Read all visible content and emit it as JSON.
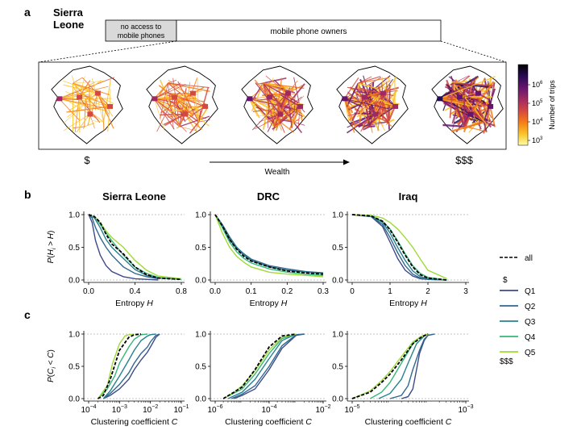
{
  "panel_a": {
    "letter": "a",
    "country_line1": "Sierra",
    "country_line2": "Leone",
    "no_access_line1": "no access to",
    "no_access_line2": "mobile phones",
    "owners_label": "mobile phone owners",
    "low_wealth": "$",
    "high_wealth": "$$$",
    "wealth_label": "Wealth",
    "colorbar_label": "Number of trips",
    "colorbar_ticks": [
      {
        "base": "10",
        "exp": "3"
      },
      {
        "base": "10",
        "exp": "4"
      },
      {
        "base": "10",
        "exp": "5"
      },
      {
        "base": "10",
        "exp": "6"
      }
    ],
    "colormap": [
      "#fcffa4",
      "#fac228",
      "#f57d15",
      "#d44842",
      "#9f2a63",
      "#65156e",
      "#280b53",
      "#000004"
    ]
  },
  "panel_b_letter": "b",
  "panel_c_letter": "c",
  "legend": {
    "all_label": "all",
    "low": "$",
    "high": "$$$",
    "quintiles": [
      {
        "label": "Q1",
        "color": "#3e4a89"
      },
      {
        "label": "Q2",
        "color": "#31688e"
      },
      {
        "label": "Q3",
        "color": "#26838f"
      },
      {
        "label": "Q4",
        "color": "#35b779"
      },
      {
        "label": "Q5",
        "color": "#a0da39"
      }
    ]
  },
  "chart_data": [
    {
      "type": "line",
      "id": "b-sl",
      "title": "Sierra Leone",
      "xlabel": "Entropy H",
      "ylabel": "P(H_i > H)",
      "xlim": [
        0,
        0.8
      ],
      "ylim": [
        0,
        1
      ],
      "xticks": [
        "0.0",
        "0.4",
        "0.8"
      ],
      "yticks": [
        "0.0",
        "0.5",
        "1.0"
      ],
      "series": [
        {
          "name": "Q1",
          "x": [
            0,
            0.03,
            0.06,
            0.1,
            0.15,
            0.2,
            0.3,
            0.4,
            0.5,
            0.6
          ],
          "y": [
            1,
            0.88,
            0.6,
            0.38,
            0.22,
            0.13,
            0.05,
            0.02,
            0.01,
            0
          ]
        },
        {
          "name": "Q2",
          "x": [
            0,
            0.03,
            0.06,
            0.1,
            0.15,
            0.2,
            0.3,
            0.4,
            0.5,
            0.6
          ],
          "y": [
            1,
            0.95,
            0.8,
            0.65,
            0.5,
            0.38,
            0.2,
            0.1,
            0.05,
            0.02
          ]
        },
        {
          "name": "Q3",
          "x": [
            0,
            0.05,
            0.1,
            0.15,
            0.2,
            0.3,
            0.4,
            0.5,
            0.6,
            0.8
          ],
          "y": [
            1,
            0.95,
            0.8,
            0.62,
            0.5,
            0.33,
            0.16,
            0.07,
            0.03,
            0.01
          ]
        },
        {
          "name": "Q4",
          "x": [
            0,
            0.05,
            0.1,
            0.15,
            0.2,
            0.3,
            0.4,
            0.5,
            0.6,
            0.8
          ],
          "y": [
            1,
            0.97,
            0.85,
            0.72,
            0.6,
            0.38,
            0.2,
            0.1,
            0.04,
            0.01
          ]
        },
        {
          "name": "Q5",
          "x": [
            0,
            0.05,
            0.1,
            0.15,
            0.2,
            0.3,
            0.4,
            0.5,
            0.6,
            0.8
          ],
          "y": [
            1,
            0.97,
            0.88,
            0.75,
            0.65,
            0.5,
            0.3,
            0.15,
            0.06,
            0.02
          ]
        },
        {
          "name": "all",
          "x": [
            0,
            0.05,
            0.1,
            0.15,
            0.2,
            0.3,
            0.4,
            0.5,
            0.6,
            0.8
          ],
          "y": [
            1,
            0.97,
            0.88,
            0.7,
            0.55,
            0.4,
            0.2,
            0.08,
            0.03,
            0.01
          ]
        }
      ]
    },
    {
      "type": "line",
      "id": "b-drc",
      "title": "DRC",
      "xlabel": "Entropy H",
      "ylabel": "",
      "xlim": [
        0,
        0.3
      ],
      "ylim": [
        0,
        1
      ],
      "xticks": [
        "0.0",
        "0.1",
        "0.2",
        "0.3"
      ],
      "yticks": [
        "0.0",
        "0.5",
        "1.0"
      ],
      "series": [
        {
          "name": "Q1",
          "x": [
            0,
            0.02,
            0.04,
            0.06,
            0.08,
            0.1,
            0.15,
            0.2,
            0.25,
            0.3
          ],
          "y": [
            1,
            0.82,
            0.62,
            0.48,
            0.38,
            0.3,
            0.2,
            0.15,
            0.12,
            0.1
          ]
        },
        {
          "name": "Q2",
          "x": [
            0,
            0.02,
            0.04,
            0.06,
            0.08,
            0.1,
            0.15,
            0.2,
            0.25,
            0.3
          ],
          "y": [
            1,
            0.85,
            0.66,
            0.5,
            0.4,
            0.32,
            0.22,
            0.17,
            0.13,
            0.11
          ]
        },
        {
          "name": "Q3",
          "x": [
            0,
            0.02,
            0.04,
            0.06,
            0.08,
            0.1,
            0.15,
            0.2,
            0.25,
            0.3
          ],
          "y": [
            1,
            0.84,
            0.64,
            0.5,
            0.38,
            0.3,
            0.2,
            0.15,
            0.12,
            0.1
          ]
        },
        {
          "name": "Q4",
          "x": [
            0,
            0.02,
            0.04,
            0.06,
            0.08,
            0.1,
            0.15,
            0.2,
            0.25,
            0.3
          ],
          "y": [
            1,
            0.8,
            0.58,
            0.43,
            0.33,
            0.26,
            0.17,
            0.12,
            0.09,
            0.07
          ]
        },
        {
          "name": "Q5",
          "x": [
            0,
            0.02,
            0.04,
            0.06,
            0.08,
            0.1,
            0.15,
            0.2,
            0.25,
            0.3
          ],
          "y": [
            1,
            0.72,
            0.5,
            0.36,
            0.27,
            0.2,
            0.12,
            0.09,
            0.07,
            0.05
          ]
        },
        {
          "name": "all",
          "x": [
            0,
            0.02,
            0.04,
            0.06,
            0.08,
            0.1,
            0.15,
            0.2,
            0.25,
            0.3
          ],
          "y": [
            1,
            0.83,
            0.62,
            0.47,
            0.36,
            0.29,
            0.2,
            0.14,
            0.11,
            0.09
          ]
        }
      ]
    },
    {
      "type": "line",
      "id": "b-iraq",
      "title": "Iraq",
      "xlabel": "Entropy H",
      "ylabel": "",
      "xlim": [
        0,
        3
      ],
      "ylim": [
        0,
        1
      ],
      "xticks": [
        "0",
        "1",
        "2",
        "3"
      ],
      "yticks": [
        "0.0",
        "0.5",
        "1.0"
      ],
      "series": [
        {
          "name": "Q1",
          "x": [
            0,
            0.5,
            0.8,
            1.0,
            1.2,
            1.4,
            1.6,
            1.8,
            2.0,
            2.5
          ],
          "y": [
            1,
            0.97,
            0.82,
            0.58,
            0.33,
            0.15,
            0.06,
            0.02,
            0.01,
            0
          ]
        },
        {
          "name": "Q2",
          "x": [
            0,
            0.5,
            0.8,
            1.0,
            1.2,
            1.4,
            1.6,
            1.8,
            2.0,
            2.5
          ],
          "y": [
            1,
            0.97,
            0.85,
            0.65,
            0.42,
            0.22,
            0.09,
            0.03,
            0.01,
            0
          ]
        },
        {
          "name": "Q3",
          "x": [
            0,
            0.5,
            0.8,
            1.0,
            1.2,
            1.4,
            1.6,
            1.8,
            2.0,
            2.5
          ],
          "y": [
            1,
            0.98,
            0.88,
            0.72,
            0.5,
            0.3,
            0.14,
            0.05,
            0.02,
            0
          ]
        },
        {
          "name": "Q4",
          "x": [
            0,
            0.5,
            0.8,
            1.0,
            1.2,
            1.4,
            1.6,
            1.8,
            2.0,
            2.5
          ],
          "y": [
            1,
            0.98,
            0.9,
            0.78,
            0.6,
            0.4,
            0.22,
            0.1,
            0.04,
            0
          ]
        },
        {
          "name": "Q5",
          "x": [
            0,
            0.5,
            0.8,
            1.0,
            1.2,
            1.4,
            1.6,
            1.8,
            2.0,
            2.5
          ],
          "y": [
            1,
            0.99,
            0.95,
            0.88,
            0.78,
            0.65,
            0.5,
            0.32,
            0.15,
            0.02
          ]
        },
        {
          "name": "all",
          "x": [
            0,
            0.5,
            0.8,
            1.0,
            1.2,
            1.4,
            1.6,
            1.8,
            2.0,
            2.5
          ],
          "y": [
            1,
            0.98,
            0.9,
            0.77,
            0.58,
            0.38,
            0.2,
            0.08,
            0.03,
            0
          ]
        }
      ]
    },
    {
      "type": "line",
      "id": "c-sl",
      "title": "",
      "xlabel": "Clustering coefficient C",
      "ylabel": "P(C_i < C)",
      "xscale": "log",
      "xlim": [
        0.0001,
        0.1
      ],
      "ylim": [
        0,
        1
      ],
      "xticks": [
        {
          "base": "10",
          "exp": "−4"
        },
        {
          "base": "10",
          "exp": "−3"
        },
        {
          "base": "10",
          "exp": "−2"
        },
        {
          "base": "10",
          "exp": "−1"
        }
      ],
      "yticks": [
        "0.0",
        "0.5",
        "1.0"
      ],
      "series": [
        {
          "name": "Q1",
          "x": [
            0.0003,
            0.0005,
            0.001,
            0.002,
            0.003,
            0.005,
            0.008,
            0.01,
            0.015,
            0.02
          ],
          "y": [
            0,
            0.05,
            0.15,
            0.3,
            0.45,
            0.6,
            0.72,
            0.8,
            0.95,
            1
          ]
        },
        {
          "name": "Q2",
          "x": [
            0.0003,
            0.0005,
            0.001,
            0.002,
            0.003,
            0.005,
            0.008,
            0.01,
            0.015,
            0.02
          ],
          "y": [
            0,
            0.08,
            0.22,
            0.4,
            0.55,
            0.7,
            0.8,
            0.88,
            0.98,
            1
          ]
        },
        {
          "name": "Q3",
          "x": [
            0.0003,
            0.0005,
            0.001,
            0.002,
            0.003,
            0.005,
            0.008,
            0.01,
            0.015
          ],
          "y": [
            0,
            0.12,
            0.35,
            0.6,
            0.75,
            0.9,
            0.97,
            0.99,
            1
          ]
        },
        {
          "name": "Q4",
          "x": [
            0.0002,
            0.0004,
            0.0007,
            0.001,
            0.002,
            0.003,
            0.005,
            0.008
          ],
          "y": [
            0,
            0.15,
            0.35,
            0.55,
            0.8,
            0.92,
            0.99,
            1
          ]
        },
        {
          "name": "Q5",
          "x": [
            0.0002,
            0.0004,
            0.0006,
            0.001,
            0.0015,
            0.002,
            0.003
          ],
          "y": [
            0,
            0.2,
            0.55,
            0.85,
            0.97,
            0.99,
            1
          ]
        },
        {
          "name": "all",
          "x": [
            0.0002,
            0.0003,
            0.0005,
            0.001,
            0.002,
            0.003,
            0.005
          ],
          "y": [
            0,
            0.05,
            0.3,
            0.75,
            0.95,
            0.99,
            1
          ]
        }
      ]
    },
    {
      "type": "line",
      "id": "c-drc",
      "title": "",
      "xlabel": "Clustering coefficient C",
      "ylabel": "",
      "xscale": "log",
      "xlim": [
        1e-06,
        0.01
      ],
      "ylim": [
        0,
        1
      ],
      "xticks": [
        {
          "base": "10",
          "exp": "−6"
        },
        {
          "base": "10",
          "exp": "−4"
        },
        {
          "base": "10",
          "exp": "−2"
        }
      ],
      "yticks": [
        "0.0",
        "0.5",
        "1.0"
      ],
      "series": [
        {
          "name": "Q1",
          "x": [
            5e-06,
            1e-05,
            3e-05,
            0.0001,
            0.0003,
            0.001,
            0.002
          ],
          "y": [
            0,
            0.05,
            0.15,
            0.45,
            0.78,
            0.98,
            1
          ]
        },
        {
          "name": "Q2",
          "x": [
            4e-06,
            1e-05,
            3e-05,
            0.0001,
            0.0003,
            0.001,
            0.002
          ],
          "y": [
            0,
            0.07,
            0.2,
            0.5,
            0.82,
            0.99,
            1
          ]
        },
        {
          "name": "Q3",
          "x": [
            3e-06,
            1e-05,
            3e-05,
            0.0001,
            0.0003,
            0.001
          ],
          "y": [
            0,
            0.1,
            0.3,
            0.62,
            0.9,
            1
          ]
        },
        {
          "name": "Q4",
          "x": [
            2e-06,
            1e-05,
            3e-05,
            0.0001,
            0.0003,
            0.001
          ],
          "y": [
            0,
            0.15,
            0.38,
            0.7,
            0.93,
            1
          ]
        },
        {
          "name": "Q5",
          "x": [
            2e-06,
            5e-06,
            1e-05,
            3e-05,
            0.0001,
            0.0003,
            0.001
          ],
          "y": [
            0,
            0.1,
            0.2,
            0.43,
            0.75,
            0.95,
            1
          ]
        },
        {
          "name": "all",
          "x": [
            2e-06,
            5e-06,
            1e-05,
            3e-05,
            0.0001,
            0.0003,
            0.001
          ],
          "y": [
            0,
            0.1,
            0.18,
            0.45,
            0.8,
            0.97,
            1
          ]
        }
      ]
    },
    {
      "type": "line",
      "id": "c-iraq",
      "title": "",
      "xlabel": "Clustering coefficient C",
      "ylabel": "",
      "xscale": "log",
      "xlim": [
        1e-05,
        0.01
      ],
      "ylim": [
        0,
        1
      ],
      "xticks": [
        {
          "base": "10",
          "exp": "−5"
        },
        {
          "base": "10",
          "exp": "−3"
        }
      ],
      "yticks": [
        "0.0",
        "0.5",
        "1.0"
      ],
      "series": [
        {
          "name": "Q1",
          "x": [
            0.0002,
            0.0003,
            0.0004,
            0.0005,
            0.0006,
            0.0008,
            0.001,
            0.0015
          ],
          "y": [
            0,
            0.03,
            0.15,
            0.45,
            0.7,
            0.9,
            0.98,
            1
          ]
        },
        {
          "name": "Q2",
          "x": [
            0.0001,
            0.0002,
            0.0003,
            0.0004,
            0.0006,
            0.0008,
            0.001,
            0.0015
          ],
          "y": [
            0,
            0.05,
            0.2,
            0.45,
            0.75,
            0.92,
            0.98,
            1
          ]
        },
        {
          "name": "Q3",
          "x": [
            5e-05,
            0.0001,
            0.0002,
            0.0003,
            0.0005,
            0.0008,
            0.001
          ],
          "y": [
            0,
            0.08,
            0.3,
            0.55,
            0.85,
            0.97,
            1
          ]
        },
        {
          "name": "Q4",
          "x": [
            3e-05,
            6e-05,
            0.0001,
            0.0002,
            0.0004,
            0.0006,
            0.001
          ],
          "y": [
            0,
            0.1,
            0.25,
            0.55,
            0.85,
            0.95,
            1
          ]
        },
        {
          "name": "Q5",
          "x": [
            1e-05,
            3e-05,
            6e-05,
            0.0001,
            0.0002,
            0.0004,
            0.0007,
            0.001
          ],
          "y": [
            0,
            0.12,
            0.28,
            0.42,
            0.65,
            0.88,
            0.97,
            1
          ]
        },
        {
          "name": "all",
          "x": [
            1e-05,
            3e-05,
            6e-05,
            0.0001,
            0.0002,
            0.0004,
            0.0007,
            0.001
          ],
          "y": [
            0,
            0.1,
            0.25,
            0.38,
            0.6,
            0.85,
            0.96,
            1
          ]
        }
      ]
    }
  ]
}
